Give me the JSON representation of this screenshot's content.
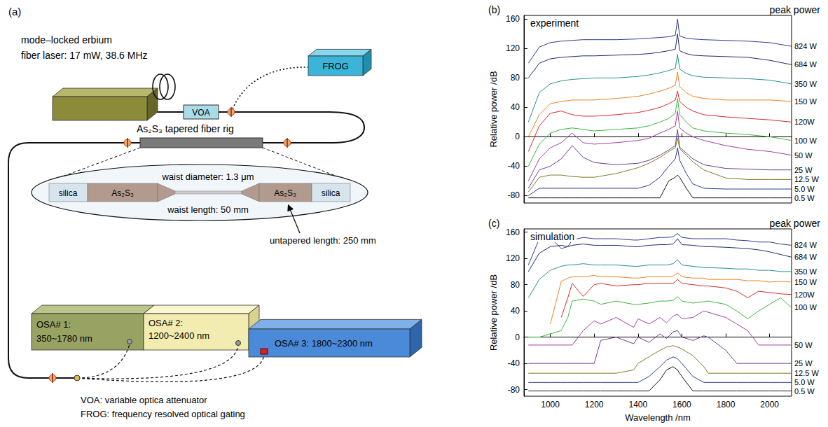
{
  "diagram": {
    "label": "(a)",
    "laser": [
      "mode–locked erbium",
      "fiber laser: 17 mW, 38.6 MHz"
    ],
    "voa": "VOA",
    "frog": "FROG",
    "rig": "As₂S₃ tapered fiber rig",
    "taper": {
      "left": "silica",
      "left_core": "As₂S₃",
      "right_core": "As₂S₃",
      "right": "silica",
      "waist_diameter": "waist diameter: 1.3 μm",
      "waist_length": "waist length: 50 mm",
      "untapered": "untapered length: 250 mm"
    },
    "osa": [
      {
        "lines": [
          "OSA# 1:",
          "350~1780 nm"
        ]
      },
      {
        "lines": [
          "OSA# 2:",
          "1200~2400 nm"
        ]
      },
      {
        "lines": [
          "OSA# 3: 1800~2300 nm"
        ]
      }
    ],
    "notes": [
      "VOA: variable optica attenuator",
      "FROG: frequency resolved optical gating"
    ]
  },
  "chart_data": [
    {
      "panel": "(b)",
      "type": "line",
      "title": "experiment",
      "annotation": "peak power",
      "ylabel": "Relative power /dB",
      "xlim": [
        880,
        2100
      ],
      "xticks": [
        1000,
        1200,
        1400,
        1600,
        1800,
        2000
      ],
      "ylim": [
        -90,
        165
      ],
      "yticks": [
        -80,
        -40,
        0,
        40,
        80,
        120,
        160
      ],
      "grid": false,
      "tick_labels": "y",
      "x": [
        900,
        950,
        1000,
        1050,
        1100,
        1150,
        1200,
        1300,
        1400,
        1450,
        1500,
        1540,
        1570,
        1580,
        1590,
        1620,
        1650,
        1700,
        1800,
        1900,
        2000,
        2100
      ],
      "series": [
        {
          "name": "824 W",
          "color": "#2e3a8f",
          "values": [
            100,
            122,
            128,
            130,
            131,
            132,
            132,
            132,
            133,
            134,
            135,
            136,
            138,
            160,
            137,
            134,
            133,
            132,
            131,
            130,
            128,
            123
          ]
        },
        {
          "name": "684 W",
          "color": "#1c2a6e",
          "values": [
            80,
            100,
            106,
            108,
            109,
            110,
            110,
            111,
            112,
            113,
            115,
            117,
            119,
            140,
            117,
            113,
            111,
            110,
            109,
            108,
            104,
            98
          ]
        },
        {
          "name": "350 W",
          "color": "#2a8c8c",
          "values": [
            20,
            60,
            72,
            76,
            78,
            79,
            80,
            80,
            82,
            84,
            87,
            90,
            93,
            112,
            92,
            86,
            83,
            81,
            80,
            79,
            77,
            72
          ]
        },
        {
          "name": "150 W",
          "color": "#f08020",
          "values": [
            0,
            30,
            45,
            48,
            50,
            50,
            50,
            52,
            55,
            58,
            62,
            66,
            70,
            88,
            68,
            60,
            55,
            52,
            50,
            50,
            50,
            48
          ]
        },
        {
          "name": "120W",
          "color": "#d42a2a",
          "values": [
            -20,
            15,
            32,
            35,
            30,
            28,
            28,
            30,
            33,
            36,
            40,
            45,
            50,
            62,
            48,
            40,
            35,
            30,
            27,
            25,
            23,
            20
          ]
        },
        {
          "name": "100 W",
          "color": "#3db33d",
          "values": [
            -40,
            -10,
            5,
            10,
            12,
            10,
            8,
            10,
            12,
            15,
            20,
            25,
            32,
            52,
            30,
            20,
            12,
            8,
            5,
            3,
            0,
            -5
          ]
        },
        {
          "name": "50 W",
          "color": "#a03ca0",
          "values": [
            -60,
            -30,
            -15,
            -8,
            5,
            -8,
            -10,
            -8,
            -5,
            -2,
            5,
            10,
            15,
            35,
            12,
            5,
            0,
            -5,
            -12,
            -17,
            -20,
            -25
          ]
        },
        {
          "name": "25 W",
          "color": "#6a3d8f",
          "values": [
            -70,
            -45,
            -40,
            -30,
            -12,
            -28,
            -35,
            -38,
            -36,
            -32,
            -25,
            -18,
            -12,
            10,
            -14,
            -22,
            -30,
            -38,
            -43,
            -44,
            -45,
            -45
          ]
        },
        {
          "name": "12.5 W",
          "color": "#7b7b2a",
          "values": [
            -75,
            -55,
            -52,
            -52,
            -54,
            -55,
            -55,
            -50,
            -42,
            -36,
            -28,
            -20,
            -15,
            -2,
            -16,
            -25,
            -34,
            -45,
            -56,
            -58,
            -58,
            -58
          ]
        },
        {
          "name": "5.0 W",
          "color": "#2b3a8c",
          "values": [
            -80,
            -70,
            -70,
            -70,
            -70,
            -70,
            -70,
            -70,
            -70,
            -66,
            -55,
            -40,
            -30,
            -15,
            -32,
            -50,
            -64,
            -70,
            -71,
            -71,
            -71,
            -71
          ]
        },
        {
          "name": "0.5 W",
          "color": "#111111",
          "values": [
            -83,
            -83,
            -83,
            -83,
            -83,
            -83,
            -83,
            -83,
            -83,
            -83,
            -83,
            -60,
            -55,
            -52,
            -55,
            -70,
            -83,
            -83,
            -83,
            -83,
            -83,
            -83
          ]
        }
      ]
    },
    {
      "panel": "(c)",
      "type": "line",
      "title": "simulation",
      "annotation": "peak power",
      "xlabel": "Wavelength /nm",
      "ylabel": "Relative power /dB",
      "xlim": [
        880,
        2100
      ],
      "xticks": [
        1000,
        1200,
        1400,
        1600,
        1800,
        2000
      ],
      "ylim": [
        -90,
        165
      ],
      "yticks": [
        -80,
        -40,
        0,
        40,
        80,
        120,
        160
      ],
      "grid": false,
      "x": [
        900,
        950,
        1000,
        1050,
        1080,
        1100,
        1150,
        1200,
        1230,
        1300,
        1380,
        1400,
        1450,
        1500,
        1530,
        1560,
        1580,
        1600,
        1650,
        1700,
        1720,
        1800,
        1850,
        1900,
        1950,
        2000,
        2050,
        2100
      ],
      "series": [
        {
          "name": "824 W",
          "color": "#2e3a8f",
          "values": [
            110,
            150,
            152,
            135,
            138,
            148,
            152,
            150,
            150,
            150,
            148,
            148,
            150,
            152,
            152,
            153,
            158,
            152,
            150,
            150,
            150,
            150,
            148,
            147,
            145,
            145,
            142,
            140
          ]
        },
        {
          "name": "684 W",
          "color": "#1c2a6e",
          "values": [
            100,
            128,
            138,
            140,
            138,
            140,
            142,
            140,
            140,
            140,
            138,
            138,
            140,
            141,
            141,
            142,
            150,
            141,
            140,
            138,
            138,
            137,
            136,
            135,
            133,
            130,
            126,
            122
          ]
        },
        {
          "name": "350 W",
          "color": "#2a8c8c",
          "values": [
            60,
            88,
            102,
            108,
            110,
            110,
            112,
            110,
            110,
            110,
            108,
            108,
            110,
            110,
            110,
            112,
            118,
            110,
            108,
            106,
            106,
            105,
            104,
            104,
            102,
            102,
            100,
            100
          ]
        },
        {
          "name": "150 W",
          "color": "#f08020",
          "values": [
            null,
            null,
            20,
            85,
            90,
            92,
            92,
            94,
            92,
            92,
            90,
            90,
            92,
            92,
            92,
            93,
            98,
            92,
            90,
            90,
            88,
            88,
            88,
            86,
            86,
            84,
            85,
            84
          ]
        },
        {
          "name": "120W",
          "color": "#d42a2a",
          "values": [
            null,
            null,
            null,
            30,
            60,
            82,
            62,
            80,
            82,
            78,
            80,
            80,
            82,
            82,
            82,
            82,
            88,
            82,
            80,
            78,
            78,
            75,
            70,
            60,
            70,
            68,
            66,
            65
          ]
        },
        {
          "name": "100 W",
          "color": "#3db33d",
          "values": [
            0,
            0,
            5,
            10,
            30,
            55,
            58,
            55,
            50,
            55,
            50,
            50,
            52,
            55,
            55,
            56,
            62,
            55,
            52,
            54,
            55,
            50,
            40,
            28,
            40,
            50,
            60,
            45
          ]
        },
        {
          "name": "50 W",
          "color": "#a03ca0",
          "values": [
            -12,
            -12,
            -12,
            -12,
            -12,
            -12,
            10,
            25,
            20,
            30,
            15,
            28,
            20,
            30,
            22,
            32,
            35,
            28,
            30,
            40,
            38,
            30,
            20,
            10,
            -12,
            -12,
            -12,
            -12
          ]
        },
        {
          "name": "25 W",
          "color": "#6a3d8f",
          "values": [
            -40,
            -40,
            -40,
            -40,
            -40,
            -40,
            -40,
            -40,
            -5,
            0,
            -10,
            0,
            -8,
            5,
            -2,
            8,
            10,
            0,
            -5,
            2,
            0,
            -20,
            -40,
            -40,
            -40,
            -40,
            -40,
            -40
          ]
        },
        {
          "name": "12.5 W",
          "color": "#7b7b2a",
          "values": [
            -55,
            -55,
            -55,
            -55,
            -55,
            -55,
            -55,
            -55,
            -55,
            -55,
            -50,
            -40,
            -30,
            -20,
            -15,
            -13,
            -15,
            -18,
            -28,
            -45,
            -55,
            -55,
            -55,
            -55,
            -55,
            -55,
            -55,
            -55
          ]
        },
        {
          "name": "5.0 W",
          "color": "#2b3a8c",
          "values": [
            -69,
            -69,
            -69,
            -69,
            -69,
            -69,
            -69,
            -69,
            -69,
            -69,
            -69,
            -69,
            -60,
            -45,
            -35,
            -30,
            -33,
            -40,
            -60,
            -69,
            -69,
            -69,
            -69,
            -69,
            -69,
            -69,
            -69,
            -69
          ]
        },
        {
          "name": "0.5 W",
          "color": "#111111",
          "values": [
            -82,
            -82,
            -82,
            -82,
            -82,
            -82,
            -82,
            -82,
            -82,
            -82,
            -82,
            -82,
            -82,
            -65,
            -50,
            -45,
            -50,
            -60,
            -82,
            -82,
            -82,
            -82,
            -82,
            -82,
            -82,
            -82,
            -82,
            -82
          ]
        }
      ]
    }
  ]
}
